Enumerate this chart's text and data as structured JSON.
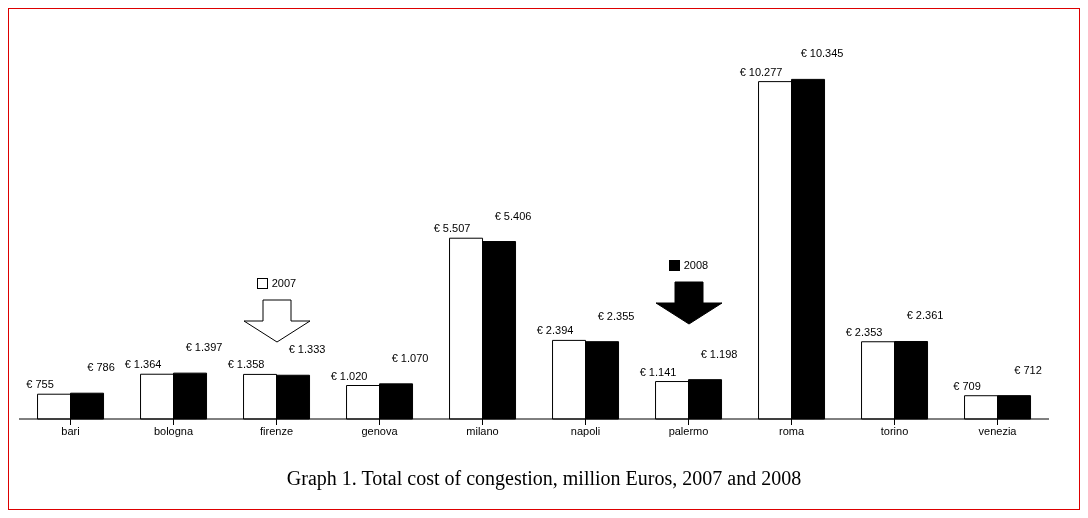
{
  "chart_data": {
    "type": "bar",
    "title": "Graph 1. Total cost of congestion, million Euros, 2007 and 2008",
    "categories": [
      "bari",
      "bologna",
      "firenze",
      "genova",
      "milano",
      "napoli",
      "palermo",
      "roma",
      "torino",
      "venezia"
    ],
    "series": [
      {
        "name": "2007",
        "color": "#ffffff",
        "values": [
          755,
          1364,
          1358,
          1020,
          5507,
          2394,
          1141,
          10277,
          2353,
          709
        ],
        "value_labels": [
          "€ 755",
          "€ 1.364",
          "€ 1.358",
          "€ 1.020",
          "€ 5.507",
          "€ 2.394",
          "€ 1.141",
          "€ 10.277",
          "€ 2.353",
          "€ 709"
        ]
      },
      {
        "name": "2008",
        "color": "#000000",
        "values": [
          786,
          1397,
          1333,
          1070,
          5406,
          2355,
          1198,
          10345,
          2361,
          712
        ],
        "value_labels": [
          "€ 786",
          "€ 1.397",
          "€ 1.333",
          "€ 1.070",
          "€ 5.406",
          "€ 2.355",
          "€ 1.198",
          "€ 10.345",
          "€ 2.361",
          "€ 712"
        ]
      }
    ],
    "legend": "bottom left",
    "grid": false
  }
}
